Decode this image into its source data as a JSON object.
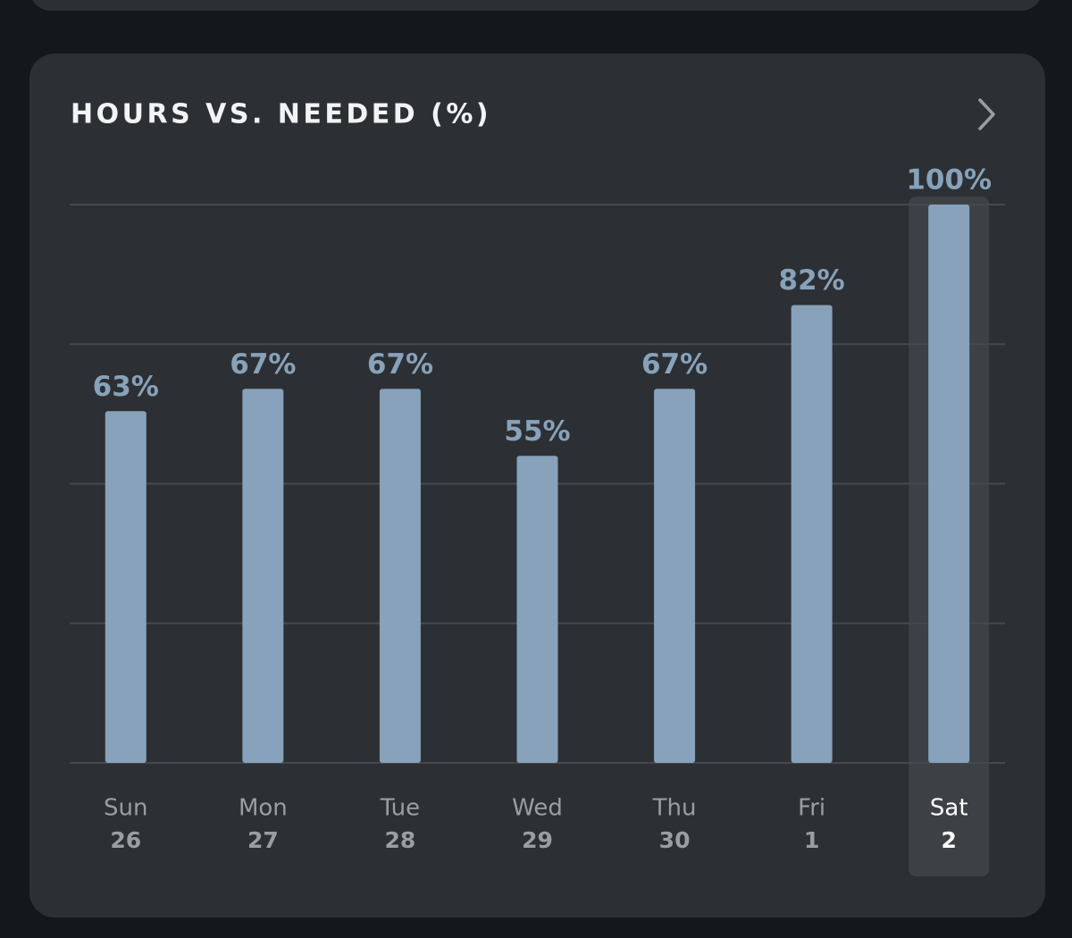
{
  "chart_data": {
    "type": "bar",
    "title": "HOURS VS. NEEDED (%)",
    "categories": [
      "Sun",
      "Mon",
      "Tue",
      "Wed",
      "Thu",
      "Fri",
      "Sat"
    ],
    "day_numbers": [
      26,
      27,
      28,
      29,
      30,
      1,
      2
    ],
    "values": [
      63,
      67,
      67,
      55,
      67,
      82,
      100
    ],
    "value_labels": [
      "63%",
      "67%",
      "67%",
      "55%",
      "67%",
      "82%",
      "100%"
    ],
    "color": "#87a2ba",
    "selected_index": 6,
    "ylim": [
      0,
      100
    ],
    "yticks": [
      0,
      25,
      50,
      75,
      100
    ],
    "grid": true
  }
}
